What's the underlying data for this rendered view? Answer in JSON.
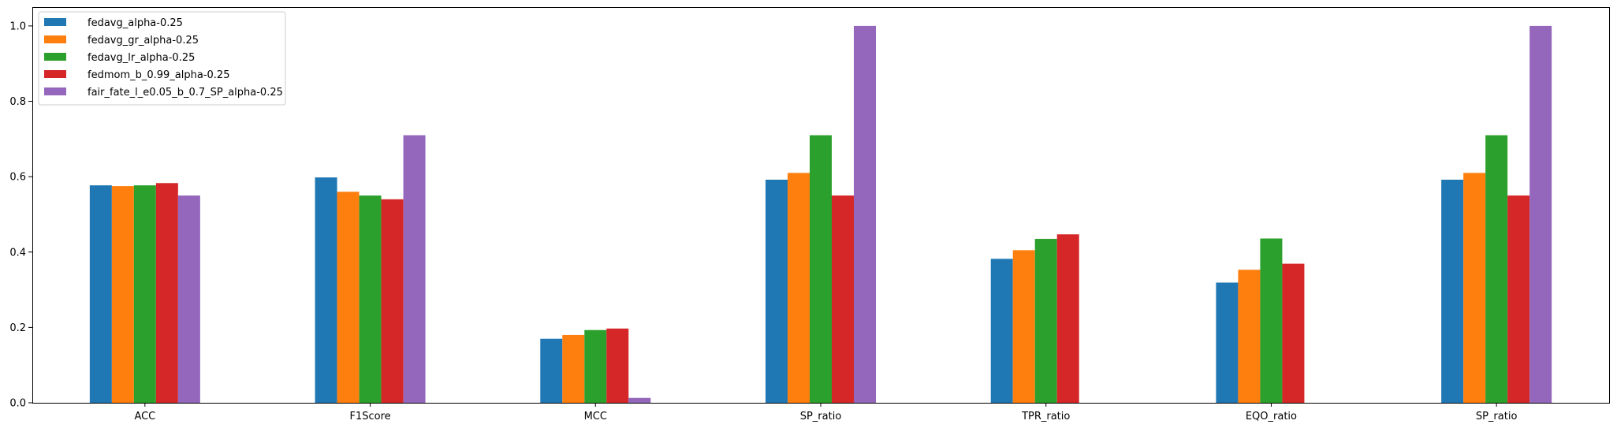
{
  "chart_data": {
    "type": "bar",
    "categories": [
      "ACC",
      "F1Score",
      "MCC",
      "SP_ratio",
      "TPR_ratio",
      "EQO_ratio",
      "SP_ratio"
    ],
    "series": [
      {
        "name": "fedavg_alpha-0.25",
        "color": "#1f77b4",
        "values": [
          0.577,
          0.598,
          0.17,
          0.592,
          0.382,
          0.319,
          0.592
        ]
      },
      {
        "name": "fedavg_gr_alpha-0.25",
        "color": "#ff7f0e",
        "values": [
          0.575,
          0.56,
          0.18,
          0.61,
          0.405,
          0.353,
          0.61
        ]
      },
      {
        "name": "fedavg_lr_alpha-0.25",
        "color": "#2ca02c",
        "values": [
          0.577,
          0.55,
          0.193,
          0.71,
          0.435,
          0.436,
          0.71
        ]
      },
      {
        "name": "fedmom_b_0.99_alpha-0.25",
        "color": "#d62728",
        "values": [
          0.583,
          0.54,
          0.197,
          0.55,
          0.447,
          0.369,
          0.55
        ]
      },
      {
        "name": "fair_fate_l_e0.05_b_0.7_SP_alpha-0.25",
        "color": "#9467bd",
        "values": [
          0.55,
          0.71,
          0.013,
          1.0,
          0.0,
          0.0,
          1.0
        ]
      }
    ],
    "ylim": [
      0,
      1.05
    ],
    "yticks": [
      "0.0",
      "0.2",
      "0.4",
      "0.6",
      "0.8",
      "1.0"
    ],
    "xlabel": "",
    "ylabel": "",
    "title": "",
    "grid": false,
    "legend_position": "top-left"
  }
}
